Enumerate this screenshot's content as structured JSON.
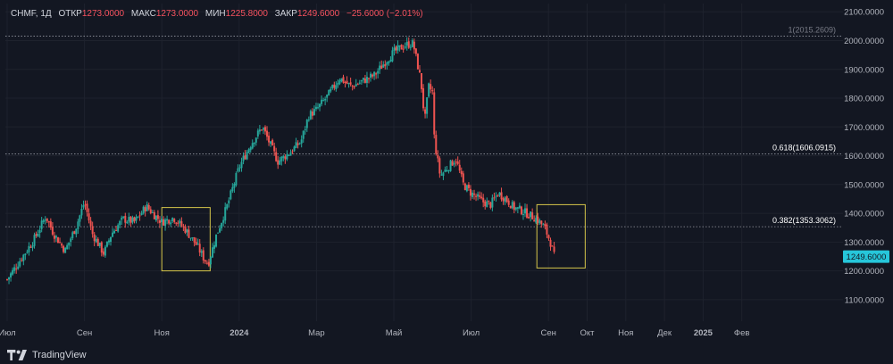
{
  "legend": {
    "symbol": "CHMF, 1Д",
    "open_label": "ОТКР",
    "open": "1273.0000",
    "high_label": "МАКС",
    "high": "1273.0000",
    "low_label": "МИН",
    "low": "1225.8000",
    "close_label": "ЗАКР",
    "close": "1249.6000",
    "change": "−25.6000 (−2.01%)"
  },
  "brand": "TradingView",
  "chart_data": {
    "type": "candlestick",
    "title": "",
    "ylim": [
      1050,
      2110
    ],
    "y_ticks": [
      "2100.0000",
      "2000.0000",
      "1900.0000",
      "1800.0000",
      "1700.0000",
      "1600.0000",
      "1500.0000",
      "1400.0000",
      "1300.0000",
      "1200.0000",
      "1100.0000"
    ],
    "x_ticks": [
      "Июл",
      "Сен",
      "Ноя",
      "2024",
      "Мар",
      "Май",
      "Июл",
      "Сен",
      "Окт",
      "Ноя",
      "Дек",
      "2025",
      "Фев"
    ],
    "x_tick_months": [
      0,
      2,
      4,
      6,
      8,
      10,
      12,
      14,
      15,
      16,
      17,
      18,
      19
    ],
    "last_price": "1249.6000",
    "last_price_value": 1249.6,
    "grid": true,
    "levels": [
      {
        "label": "1(2015.2609)",
        "value": 2015.2609
      },
      {
        "label": "0.618(1606.0915)",
        "value": 1606.0915
      },
      {
        "label": "0.382(1353.3062)",
        "value": 1353.3062
      }
    ],
    "highlight_boxes": [
      {
        "from_month": 4.0,
        "to_month": 5.25,
        "y_min": 1200,
        "y_max": 1420
      },
      {
        "from_month": 13.7,
        "to_month": 14.95,
        "y_min": 1210,
        "y_max": 1430
      }
    ],
    "price_path": [
      [
        0.0,
        1170
      ],
      [
        0.3,
        1230
      ],
      [
        0.7,
        1310
      ],
      [
        1.0,
        1390
      ],
      [
        1.2,
        1330
      ],
      [
        1.5,
        1270
      ],
      [
        1.8,
        1360
      ],
      [
        2.0,
        1440
      ],
      [
        2.2,
        1330
      ],
      [
        2.5,
        1260
      ],
      [
        2.7,
        1330
      ],
      [
        3.0,
        1380
      ],
      [
        3.3,
        1370
      ],
      [
        3.6,
        1425
      ],
      [
        3.8,
        1395
      ],
      [
        4.0,
        1370
      ],
      [
        4.3,
        1385
      ],
      [
        4.6,
        1345
      ],
      [
        4.9,
        1290
      ],
      [
        5.1,
        1240
      ],
      [
        5.2,
        1225
      ],
      [
        5.4,
        1320
      ],
      [
        5.7,
        1430
      ],
      [
        6.0,
        1560
      ],
      [
        6.3,
        1640
      ],
      [
        6.6,
        1700
      ],
      [
        6.8,
        1640
      ],
      [
        7.0,
        1580
      ],
      [
        7.3,
        1610
      ],
      [
        7.6,
        1650
      ],
      [
        7.8,
        1740
      ],
      [
        8.0,
        1760
      ],
      [
        8.3,
        1810
      ],
      [
        8.6,
        1870
      ],
      [
        8.9,
        1840
      ],
      [
        9.2,
        1860
      ],
      [
        9.5,
        1880
      ],
      [
        9.8,
        1930
      ],
      [
        10.0,
        1960
      ],
      [
        10.3,
        1985
      ],
      [
        10.5,
        1990
      ],
      [
        10.7,
        1860
      ],
      [
        10.8,
        1720
      ],
      [
        10.9,
        1840
      ],
      [
        11.0,
        1820
      ],
      [
        11.05,
        1650
      ],
      [
        11.2,
        1530
      ],
      [
        11.4,
        1560
      ],
      [
        11.6,
        1590
      ],
      [
        11.8,
        1500
      ],
      [
        12.0,
        1470
      ],
      [
        12.3,
        1440
      ],
      [
        12.5,
        1430
      ],
      [
        12.7,
        1470
      ],
      [
        12.9,
        1450
      ],
      [
        13.1,
        1420
      ],
      [
        13.3,
        1410
      ],
      [
        13.5,
        1395
      ],
      [
        13.7,
        1380
      ],
      [
        13.9,
        1350
      ],
      [
        14.05,
        1300
      ],
      [
        14.15,
        1250
      ]
    ]
  }
}
